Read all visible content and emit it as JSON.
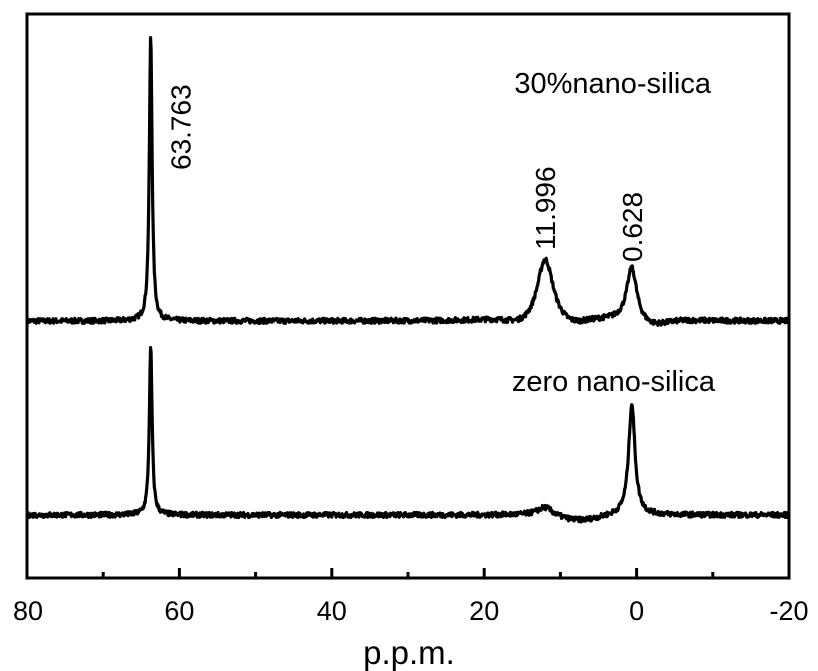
{
  "chart_data": {
    "type": "line",
    "xlabel": "p.p.m.",
    "ylabel": "",
    "xlim": [
      80,
      -20
    ],
    "x_reversed": true,
    "x_ticks": [
      80,
      60,
      40,
      20,
      0,
      -20
    ],
    "x_minor_ticks": [
      70,
      50,
      30,
      10,
      -10
    ],
    "y_ticks_shown": false,
    "grid": false,
    "legend": "none",
    "line_color": "#000000",
    "series": [
      {
        "name": "30%nano-silica",
        "baseline": 0,
        "peaks": [
          {
            "ppm": 63.763,
            "height": 10.0,
            "width": 0.22,
            "label": "63.763"
          },
          {
            "ppm": 11.996,
            "height": 2.35,
            "width": 1.3,
            "label": "11.996"
          },
          {
            "ppm": 0.628,
            "height": 1.9,
            "width": 0.8,
            "label": "0.628"
          }
        ],
        "dips": [
          {
            "ppm": 14.5,
            "depth": -0.25,
            "width": 2.0
          },
          {
            "ppm": 9.0,
            "depth": -0.25,
            "width": 2.0
          },
          {
            "ppm": -2.0,
            "depth": -0.2,
            "width": 1.8
          }
        ]
      },
      {
        "name": "zero nano-silica",
        "baseline": 0,
        "peaks": [
          {
            "ppm": 63.763,
            "height": 5.9,
            "width": 0.22
          },
          {
            "ppm": 12.0,
            "height": 0.3,
            "width": 1.2
          },
          {
            "ppm": 0.628,
            "height": 3.9,
            "width": 0.5
          }
        ],
        "dips": [
          {
            "ppm": 7.5,
            "depth": -0.2,
            "width": 2.5
          }
        ]
      }
    ]
  }
}
